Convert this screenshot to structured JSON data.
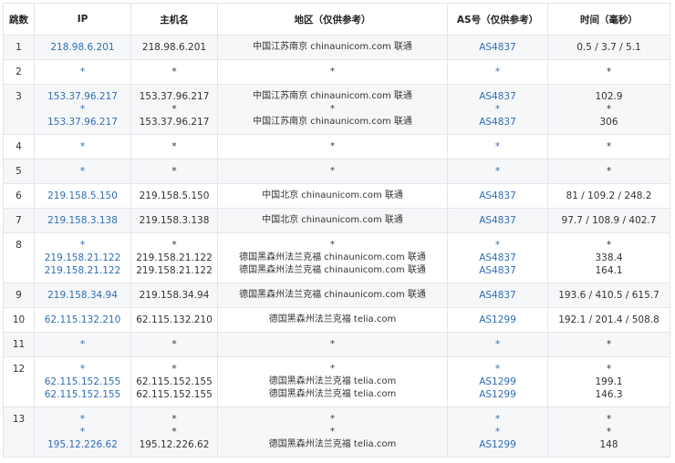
{
  "table": {
    "headers": [
      "跳数",
      "IP",
      "主机名",
      "地区（仅供参考）",
      "AS号（仅供参考）",
      "时间（毫秒）"
    ],
    "rows": [
      {
        "hop": 1,
        "lines": [
          [
            "218.98.6.201",
            "218.98.6.201",
            "中国江苏南京 chinaunicom.com 联通",
            "AS4837",
            "0.5 / 3.7 / 5.1"
          ]
        ]
      },
      {
        "hop": 2,
        "lines": [
          [
            "*",
            "*",
            "*",
            "*",
            "*"
          ]
        ]
      },
      {
        "hop": 3,
        "lines": [
          [
            "153.37.96.217",
            "153.37.96.217",
            "中国江苏南京 chinaunicom.com 联通",
            "AS4837",
            "102.9"
          ],
          [
            "*",
            "*",
            "*",
            "*",
            "*"
          ],
          [
            "153.37.96.217",
            "153.37.96.217",
            "中国江苏南京 chinaunicom.com 联通",
            "AS4837",
            "306"
          ]
        ]
      },
      {
        "hop": 4,
        "lines": [
          [
            "*",
            "*",
            "*",
            "*",
            "*"
          ]
        ]
      },
      {
        "hop": 5,
        "lines": [
          [
            "*",
            "*",
            "*",
            "*",
            "*"
          ]
        ]
      },
      {
        "hop": 6,
        "lines": [
          [
            "219.158.5.150",
            "219.158.5.150",
            "中国北京 chinaunicom.com 联通",
            "AS4837",
            "81 / 109.2 / 248.2"
          ]
        ]
      },
      {
        "hop": 7,
        "lines": [
          [
            "219.158.3.138",
            "219.158.3.138",
            "中国北京 chinaunicom.com 联通",
            "AS4837",
            "97.7 / 108.9 / 402.7"
          ]
        ]
      },
      {
        "hop": 8,
        "lines": [
          [
            "*",
            "*",
            "*",
            "*",
            "*"
          ],
          [
            "219.158.21.122",
            "219.158.21.122",
            "德国黑森州法兰克福 chinaunicom.com 联通",
            "AS4837",
            "338.4"
          ],
          [
            "219.158.21.122",
            "219.158.21.122",
            "德国黑森州法兰克福 chinaunicom.com 联通",
            "AS4837",
            "164.1"
          ]
        ]
      },
      {
        "hop": 9,
        "lines": [
          [
            "219.158.34.94",
            "219.158.34.94",
            "德国黑森州法兰克福 chinaunicom.com 联通",
            "AS4837",
            "193.6 / 410.5 / 615.7"
          ]
        ]
      },
      {
        "hop": 10,
        "lines": [
          [
            "62.115.132.210",
            "62.115.132.210",
            "德国黑森州法兰克福 telia.com",
            "AS1299",
            "192.1 / 201.4 / 508.8"
          ]
        ]
      },
      {
        "hop": 11,
        "lines": [
          [
            "*",
            "*",
            "*",
            "*",
            "*"
          ]
        ]
      },
      {
        "hop": 12,
        "lines": [
          [
            "*",
            "*",
            "*",
            "*",
            "*"
          ],
          [
            "62.115.152.155",
            "62.115.152.155",
            "德国黑森州法兰克福 telia.com",
            "AS1299",
            "199.1"
          ],
          [
            "62.115.152.155",
            "62.115.152.155",
            "德国黑森州法兰克福 telia.com",
            "AS1299",
            "146.3"
          ]
        ]
      },
      {
        "hop": 13,
        "lines": [
          [
            "*",
            "*",
            "*",
            "*",
            "*"
          ],
          [
            "*",
            "*",
            "*",
            "*",
            "*"
          ],
          [
            "195.12.226.62",
            "195.12.226.62",
            "德国黑森州法兰克福 telia.com",
            "AS1299",
            "148"
          ]
        ]
      }
    ]
  }
}
